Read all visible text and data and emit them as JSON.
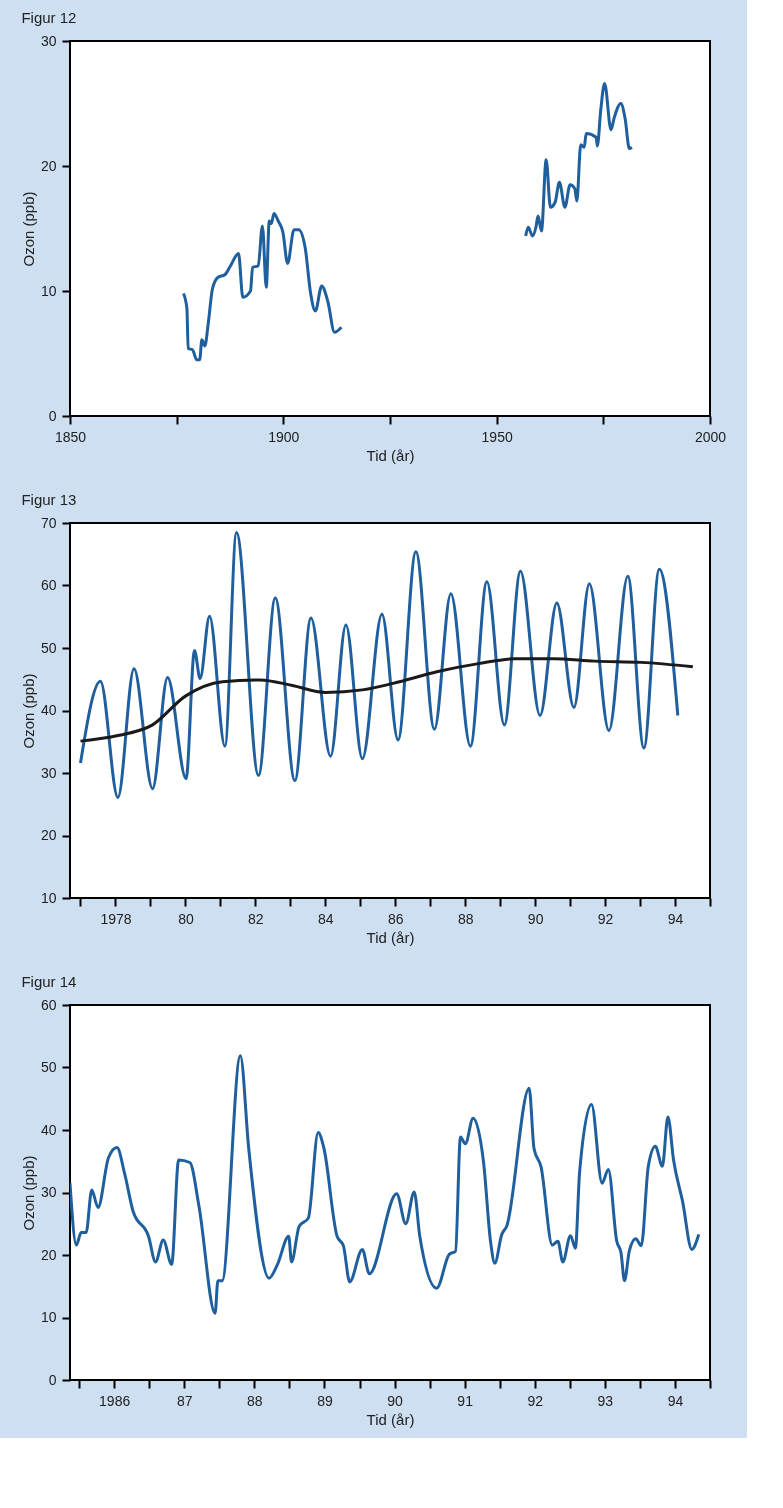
{
  "chart_data": [
    {
      "type": "line",
      "title": "Figur 12",
      "xlabel": "Tid (år)",
      "ylabel": "Ozon (ppb)",
      "xlim": [
        1850,
        2000
      ],
      "ylim": [
        0,
        30
      ],
      "xticks": [
        1850,
        {
          "value": 1875,
          "label": null
        },
        1900,
        {
          "value": 1925,
          "label": null
        },
        1950,
        {
          "value": 1975,
          "label": null
        },
        2000
      ],
      "yticks": [
        0,
        10,
        20,
        30
      ],
      "grid": false,
      "legend": false,
      "series": [
        {
          "color": "#1f5f9e",
          "x": [
            1876.6,
            1877.4,
            1877.7,
            1878.7,
            1879.7,
            1880.4,
            1880.9,
            1881.6,
            1882.4,
            1883.4,
            1884.7,
            1886.3,
            1887.6,
            1889.5,
            1890.5,
            1892.3,
            1892.8,
            1894.1,
            1895.1,
            1896.0,
            1896.7,
            1897.2,
            1897.8,
            1898.8,
            1899.9,
            1901.0,
            1902.5,
            1903.6,
            1905.1,
            1906.4,
            1907.5,
            1909.0,
            1910.4,
            1912.0,
            1913.6
          ],
          "values": [
            9.8,
            8.6,
            5.4,
            5.3,
            4.5,
            4.5,
            6.1,
            5.6,
            7.4,
            10.2,
            11.1,
            11.3,
            12.0,
            13.0,
            9.5,
            10.0,
            11.9,
            12.0,
            15.2,
            10.3,
            15.6,
            15.4,
            16.2,
            15.6,
            14.7,
            12.2,
            14.9,
            14.9,
            13.5,
            9.8,
            8.4,
            10.4,
            9.2,
            6.7,
            7.1
          ]
        },
        {
          "color": "#1f5f9e",
          "x": [
            1956.8,
            1957.4,
            1958.4,
            1959.2,
            1959.7,
            1960.5,
            1961.6,
            1962.6,
            1963.7,
            1964.7,
            1966.0,
            1967.2,
            1968.3,
            1968.8,
            1969.7,
            1970.5,
            1971.0,
            1973.3,
            1973.6,
            1974.4,
            1975.3,
            1976.8,
            1977.5,
            1979.1,
            1980.1,
            1981.1,
            1981.7
          ],
          "values": [
            14.4,
            15.1,
            14.4,
            15.1,
            16.0,
            14.8,
            20.5,
            16.7,
            17.1,
            18.7,
            16.7,
            18.5,
            18.2,
            17.2,
            21.7,
            21.5,
            22.6,
            22.3,
            21.6,
            24.5,
            26.6,
            22.9,
            23.8,
            25.0,
            23.8,
            21.4,
            21.5
          ]
        }
      ]
    },
    {
      "type": "line",
      "title": "Figur 13",
      "xlabel": "Tid (år)",
      "ylabel": "Ozon (ppb)",
      "xlim": [
        1976.7,
        1995
      ],
      "ylim": [
        10,
        70
      ],
      "xticks": [
        {
          "value": 1977,
          "label": null
        },
        {
          "value": 1978,
          "label": "1978"
        },
        {
          "value": 1979,
          "label": null
        },
        {
          "value": 1980,
          "label": "80"
        },
        {
          "value": 1981,
          "label": null
        },
        {
          "value": 1982,
          "label": "82"
        },
        {
          "value": 1983,
          "label": null
        },
        {
          "value": 1984,
          "label": "84"
        },
        {
          "value": 1985,
          "label": null
        },
        {
          "value": 1986,
          "label": "86"
        },
        {
          "value": 1987,
          "label": null
        },
        {
          "value": 1988,
          "label": "88"
        },
        {
          "value": 1989,
          "label": null
        },
        {
          "value": 1990,
          "label": "90"
        },
        {
          "value": 1991,
          "label": null
        },
        {
          "value": 1992,
          "label": "92"
        },
        {
          "value": 1993,
          "label": null
        },
        {
          "value": 1994,
          "label": "94"
        },
        {
          "value": 1995,
          "label": null
        }
      ],
      "yticks": [
        10,
        20,
        30,
        40,
        50,
        60,
        70
      ],
      "grid": false,
      "legend": false,
      "series": [
        {
          "color": "#1f5f9e",
          "x": [
            1977.0,
            1977.57,
            1978.07,
            1978.53,
            1979.06,
            1979.49,
            1980.02,
            1980.26,
            1980.42,
            1980.69,
            1981.13,
            1981.46,
            1982.09,
            1982.57,
            1983.13,
            1983.59,
            1984.15,
            1984.59,
            1985.06,
            1985.62,
            1986.08,
            1986.59,
            1987.12,
            1987.59,
            1988.15,
            1988.62,
            1989.12,
            1989.58,
            1990.14,
            1990.62,
            1991.11,
            1991.55,
            1992.11,
            1992.65,
            1993.11,
            1993.55,
            1994.08
          ],
          "values": [
            31.6,
            44.7,
            26.1,
            46.7,
            27.5,
            45.3,
            29.1,
            49.6,
            45.1,
            55.1,
            34.3,
            68.5,
            29.6,
            58.0,
            28.8,
            54.8,
            32.7,
            53.7,
            32.3,
            55.4,
            35.3,
            65.4,
            37.0,
            58.7,
            34.3,
            60.6,
            37.7,
            62.3,
            39.2,
            57.2,
            40.5,
            60.3,
            36.8,
            61.5,
            34.0,
            62.6,
            39.2
          ]
        },
        {
          "color": "#1a1a1a",
          "x": [
            1977.0,
            1978.07,
            1979.06,
            1980.0,
            1981.06,
            1982.13,
            1983.06,
            1984.0,
            1985.06,
            1986.12,
            1987.19,
            1988.38,
            1989.45,
            1990.52,
            1991.71,
            1993.04,
            1994.51
          ],
          "values": [
            35.1,
            36.0,
            37.7,
            42.3,
            44.6,
            44.9,
            44.0,
            42.9,
            43.3,
            44.6,
            46.2,
            47.5,
            48.3,
            48.3,
            47.9,
            47.7,
            47.0
          ]
        }
      ]
    },
    {
      "type": "line",
      "title": "Figur 14",
      "xlabel": "Tid (år)",
      "ylabel": "Ozon (ppb)",
      "xlim": [
        1985.37,
        1994.5
      ],
      "ylim": [
        0,
        60
      ],
      "xticks": [
        {
          "value": 1985.5,
          "label": null
        },
        {
          "value": 1986,
          "label": "1986"
        },
        {
          "value": 1986.5,
          "label": null
        },
        {
          "value": 1987,
          "label": "87"
        },
        {
          "value": 1987.5,
          "label": null
        },
        {
          "value": 1988,
          "label": "88"
        },
        {
          "value": 1988.5,
          "label": null
        },
        {
          "value": 1989,
          "label": "89"
        },
        {
          "value": 1989.5,
          "label": null
        },
        {
          "value": 1990,
          "label": "90"
        },
        {
          "value": 1990.5,
          "label": null
        },
        {
          "value": 1991,
          "label": "91"
        },
        {
          "value": 1991.5,
          "label": null
        },
        {
          "value": 1992,
          "label": "92"
        },
        {
          "value": 1992.5,
          "label": null
        },
        {
          "value": 1993,
          "label": "93"
        },
        {
          "value": 1993.5,
          "label": null
        },
        {
          "value": 1994,
          "label": "94"
        },
        {
          "value": 1994.5,
          "label": null
        }
      ],
      "yticks": [
        0,
        10,
        20,
        30,
        40,
        50,
        60
      ],
      "grid": false,
      "legend": false,
      "series": [
        {
          "color": "#1f5f9e",
          "x": [
            1985.37,
            1985.46,
            1985.53,
            1985.6,
            1985.68,
            1985.77,
            1985.92,
            1986.04,
            1986.15,
            1986.27,
            1986.49,
            1986.59,
            1986.7,
            1986.82,
            1986.92,
            1987.08,
            1987.21,
            1987.44,
            1987.48,
            1987.54,
            1987.8,
            1987.92,
            1988.21,
            1988.33,
            1988.49,
            1988.53,
            1988.64,
            1988.77,
            1988.91,
            1988.99,
            1989.18,
            1989.27,
            1989.36,
            1989.54,
            1989.64,
            1990.03,
            1990.16,
            1990.28,
            1990.36,
            1990.6,
            1990.78,
            1990.87,
            1990.94,
            1991.01,
            1991.12,
            1991.27,
            1991.37,
            1991.43,
            1991.53,
            1991.6,
            1991.92,
            1991.99,
            1992.09,
            1992.25,
            1992.33,
            1992.4,
            1992.51,
            1992.58,
            1992.64,
            1992.81,
            1992.96,
            1993.05,
            1993.17,
            1993.23,
            1993.28,
            1993.35,
            1993.44,
            1993.52,
            1993.62,
            1993.72,
            1993.82,
            1993.9,
            1993.98,
            1994.11,
            1994.24,
            1994.34
          ],
          "values": [
            31.5,
            21.6,
            23.6,
            23.6,
            30.4,
            27.6,
            35.6,
            37.2,
            33.0,
            27.0,
            23.0,
            18.9,
            22.4,
            18.5,
            35.2,
            34.8,
            27.8,
            10.7,
            15.9,
            15.9,
            51.9,
            37.0,
            16.3,
            18.5,
            23.0,
            18.9,
            24.6,
            25.9,
            39.6,
            37.2,
            23.0,
            21.5,
            15.7,
            20.9,
            17.0,
            29.8,
            25.0,
            30.1,
            23.0,
            14.7,
            20.1,
            20.6,
            38.9,
            37.8,
            41.9,
            34.8,
            22.1,
            18.7,
            23.3,
            24.6,
            46.7,
            37.0,
            34.1,
            21.6,
            22.2,
            18.9,
            23.1,
            21.1,
            33.3,
            44.1,
            31.5,
            33.7,
            22.2,
            20.4,
            15.9,
            20.7,
            22.6,
            21.5,
            34.2,
            37.4,
            34.2,
            42.1,
            35.2,
            28.5,
            20.9,
            23.3
          ]
        }
      ]
    }
  ]
}
